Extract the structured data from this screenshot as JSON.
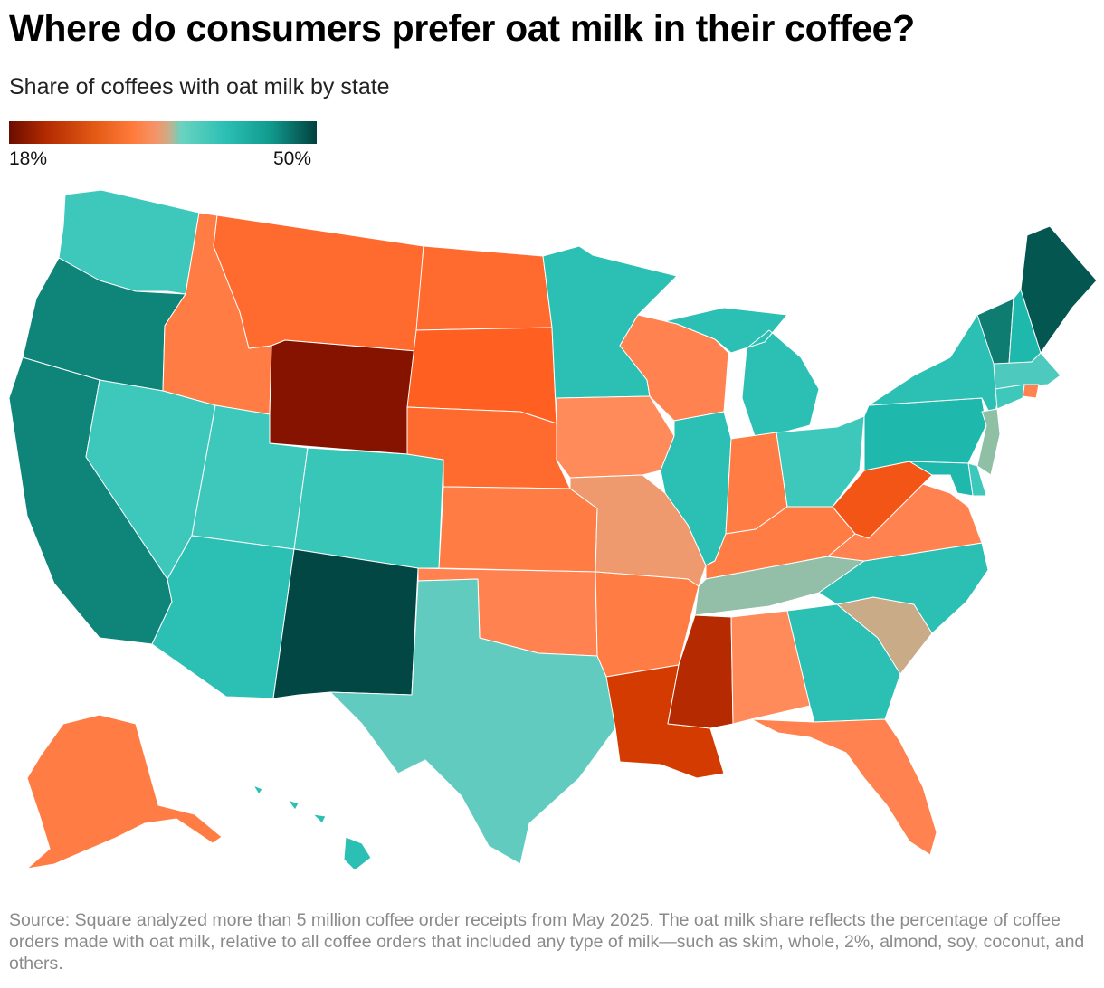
{
  "title": "Where do consumers prefer oat milk in their coffee?",
  "subtitle": "Share of coffees with oat milk by state",
  "legend": {
    "min_label": "18%",
    "max_label": "50%",
    "min_value": 18,
    "max_value": 50,
    "min_color": "#6b0d00",
    "max_color": "#03403d"
  },
  "states": [
    {
      "code": "WA",
      "color": "#3ec8bb"
    },
    {
      "code": "OR",
      "color": "#0f8479"
    },
    {
      "code": "CA",
      "color": "#0f8479"
    },
    {
      "code": "ID",
      "color": "#ff7d45"
    },
    {
      "code": "NV",
      "color": "#3ec8bb"
    },
    {
      "code": "MT",
      "color": "#ff6a2e"
    },
    {
      "code": "WY",
      "color": "#851300"
    },
    {
      "code": "UT",
      "color": "#3ec8bb"
    },
    {
      "code": "AZ",
      "color": "#2cc0b4"
    },
    {
      "code": "CO",
      "color": "#38c6b9"
    },
    {
      "code": "NM",
      "color": "#034744"
    },
    {
      "code": "ND",
      "color": "#ff6a2e"
    },
    {
      "code": "SD",
      "color": "#ff5f20"
    },
    {
      "code": "NE",
      "color": "#ff6a2e"
    },
    {
      "code": "KS",
      "color": "#ff7d45"
    },
    {
      "code": "OK",
      "color": "#ff8250"
    },
    {
      "code": "TX",
      "color": "#62cbbf"
    },
    {
      "code": "MN",
      "color": "#2cc0b4"
    },
    {
      "code": "IA",
      "color": "#ff8a5a"
    },
    {
      "code": "MO",
      "color": "#ee9a6e"
    },
    {
      "code": "AR",
      "color": "#ff7d45"
    },
    {
      "code": "LA",
      "color": "#d43b00"
    },
    {
      "code": "WI",
      "color": "#ff8250"
    },
    {
      "code": "IL",
      "color": "#2cc0b4"
    },
    {
      "code": "MI",
      "color": "#2cc0b4"
    },
    {
      "code": "IN",
      "color": "#ff7d45"
    },
    {
      "code": "OH",
      "color": "#3ec8bb"
    },
    {
      "code": "KY",
      "color": "#ff7d45"
    },
    {
      "code": "TN",
      "color": "#93bea8"
    },
    {
      "code": "MS",
      "color": "#b52a00"
    },
    {
      "code": "AL",
      "color": "#ff8a5a"
    },
    {
      "code": "GA",
      "color": "#2cc0b4"
    },
    {
      "code": "FL",
      "color": "#ff8250"
    },
    {
      "code": "SC",
      "color": "#c9ab88"
    },
    {
      "code": "NC",
      "color": "#2cc0b4"
    },
    {
      "code": "VA",
      "color": "#ff8250"
    },
    {
      "code": "WV",
      "color": "#f25516"
    },
    {
      "code": "PA",
      "color": "#1fb8ac"
    },
    {
      "code": "NY",
      "color": "#2cc0b4"
    },
    {
      "code": "VT",
      "color": "#0f7c72"
    },
    {
      "code": "NH",
      "color": "#1fb8ac"
    },
    {
      "code": "ME",
      "color": "#045650"
    },
    {
      "code": "MA",
      "color": "#4ec9bd"
    },
    {
      "code": "RI",
      "color": "#ff8250"
    },
    {
      "code": "CT",
      "color": "#3ec8bb"
    },
    {
      "code": "NJ",
      "color": "#8fc0a5"
    },
    {
      "code": "DE",
      "color": "#3ec8bb"
    },
    {
      "code": "MD",
      "color": "#1fb8ac"
    },
    {
      "code": "AK",
      "color": "#ff7d45"
    },
    {
      "code": "HI",
      "color": "#2cc0b4"
    }
  ],
  "source": "Source: Square analyzed more than 5 million coffee order receipts from May 2025. The oat milk share reflects the percentage of coffee orders made with oat milk, relative to all coffee orders that included any type of milk—such as skim, whole, 2%, almond, soy, coconut, and others."
}
